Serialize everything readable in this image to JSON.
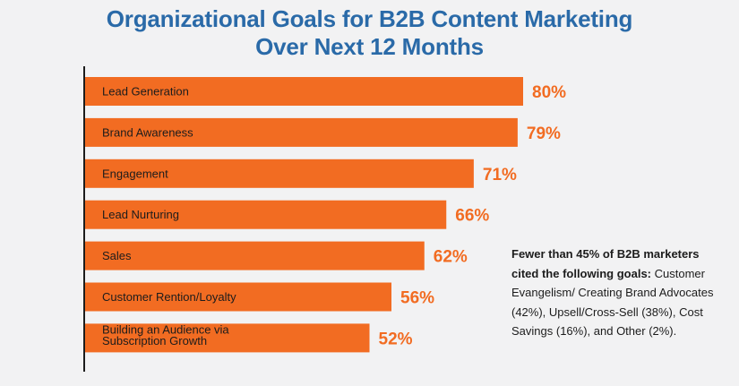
{
  "title": {
    "line1": "Organizational Goals for B2B Content Marketing",
    "line2": "Over Next 12 Months"
  },
  "colors": {
    "bar": "#f26c22",
    "title": "#2a6aa8",
    "axis": "#1c1c1c"
  },
  "note": {
    "bold": "Fewer than 45% of B2B marketers cited the following goals:",
    "text": " Customer Evangelism/ Creating Brand Advocates (42%), Upsell/Cross-Sell (38%), Cost Savings (16%), and Other (2%)."
  },
  "chart_data": {
    "type": "bar",
    "orientation": "horizontal",
    "title": "Organizational Goals for B2B Content Marketing Over Next 12 Months",
    "categories": [
      [
        "Lead Generation"
      ],
      [
        "Brand Awareness"
      ],
      [
        "Engagement"
      ],
      [
        "Lead Nurturing"
      ],
      [
        "Sales"
      ],
      [
        "Customer Rention/Loyalty"
      ],
      [
        "Building an Audience via",
        "Subscription Growth"
      ]
    ],
    "values": [
      80,
      79,
      71,
      66,
      62,
      56,
      52
    ],
    "value_labels": [
      "80%",
      "79%",
      "71%",
      "66%",
      "62%",
      "56%",
      "52%"
    ],
    "unit": "%",
    "xlim": [
      0,
      80
    ],
    "grid": false,
    "legend": "none"
  }
}
